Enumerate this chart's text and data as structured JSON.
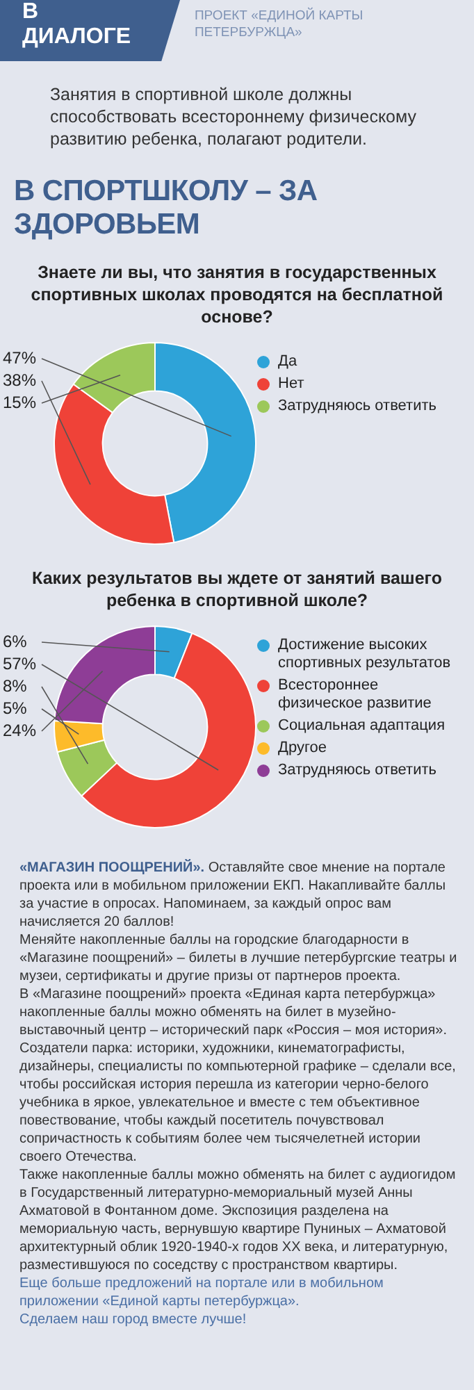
{
  "chart_data": [
    {
      "type": "other",
      "title": "В СПОРТШКОЛУ – ЗА ЗДОРОВЬЕМ",
      "annotations": [
        "В ДИАЛОГЕ",
        "ПРОЕКТ «ЕДИНОЙ КАРТЫ ПЕТЕРБУРЖЦА»",
        "Занятия в спортивной школе должны способствовать всестороннему физическому развитию ребенка, полагают родители."
      ]
    },
    {
      "type": "donut",
      "title": "Знаете ли вы, что занятия в государственных спортивных школах проводятся на бесплатной основе?",
      "categories": [
        "Да",
        "Нет",
        "Затрудняюсь ответить"
      ],
      "values": [
        47,
        38,
        15
      ],
      "value_labels": [
        "47%",
        "38%",
        "15%"
      ],
      "colors": [
        "#2ea3d8",
        "#ef4238",
        "#9cc85a"
      ],
      "legend": "right"
    },
    {
      "type": "donut",
      "title": "Каких результатов вы ждете от занятий вашего ребенка в спортивной школе?",
      "categories": [
        "Достижение высоких спортивных результатов",
        "Всестороннее физическое развитие",
        "Социальная адаптация",
        "Другое",
        "Затрудняюсь ответить"
      ],
      "values": [
        6,
        57,
        8,
        5,
        24
      ],
      "value_labels": [
        "6%",
        "57%",
        "8%",
        "5%",
        "24%"
      ],
      "colors": [
        "#2ea3d8",
        "#ef4238",
        "#9cc85a",
        "#fdbb2a",
        "#8e3d96"
      ],
      "legend": "right"
    },
    {
      "type": "other",
      "title": "«МАГАЗИН ПООЩРЕНИЙ».",
      "annotations": [
        "Оставляйте свое мнение на портале проекта или в мобильном приложении ЕКП. Накапливайте баллы за участие в опросах. Напоминаем, за каждый опрос вам начисляется 20 баллов!",
        "Меняйте накопленные баллы на городские благодарности в «Магазине поощрений» – билеты в лучшие петербургские театры и музеи, сертификаты и другие призы от партнеров проекта.",
        "В «Магазине поощрений» проекта «Единая карта петербуржца» накопленные баллы можно обменять на билет в музейно-выставочный центр – исторический парк «Россия – моя история». Создатели парка: историки, художники, кинематографисты, дизайнеры, специалисты по компьютерной графике – сделали все, чтобы российская история перешла из категории черно-белого учебника в яркое, увлекательное и вместе с тем объективное повествование, чтобы каждый посетитель почувствовал сопричастность к событиям более чем тысячелетней истории своего Отечества.",
        "Также накопленные баллы можно обменять на билет с аудиогидом в Государственный литературно-мемориальный музей Анны Ахматовой в Фонтанном доме. Экспозиция разделена на мемориальную часть, вернувшую квартире Пуниных – Ахматовой архитектурный облик 1920-1940-х годов XX века, и литературную, разместившуюся по соседству с пространством квартиры.",
        "Еще больше предложений на портале или в мобильном приложении «Единой карты петербуржца».",
        "Сделаем наш город вместе лучше!"
      ]
    }
  ]
}
